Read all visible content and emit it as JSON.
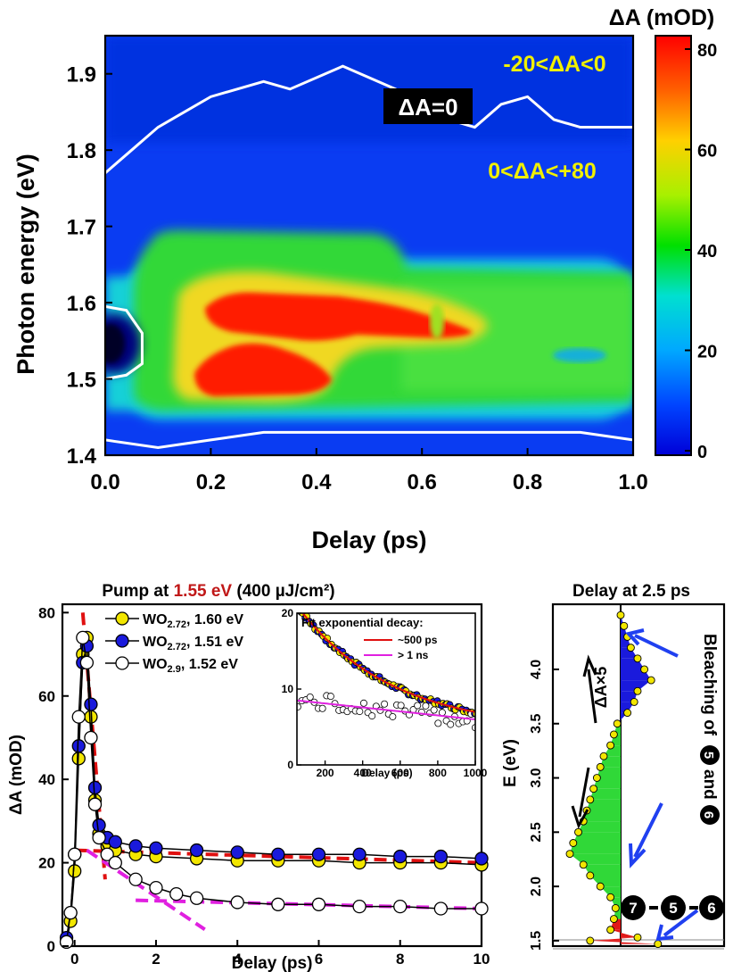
{
  "chart_data": [
    {
      "type": "heatmap",
      "xlabel": "Delay (ps)",
      "ylabel": "Photon energy (eV)",
      "xlim": [
        0,
        1.0
      ],
      "ylim": [
        1.4,
        1.95
      ],
      "x_ticks": [
        "0.0",
        "0.2",
        "0.4",
        "0.6",
        "0.8",
        "1.0"
      ],
      "y_ticks": [
        "1.4",
        "1.5",
        "1.6",
        "1.7",
        "1.8",
        "1.9"
      ],
      "colorbar_title": "ΔA (mOD)",
      "colorbar_ticks": [
        "0",
        "20",
        "40",
        "60",
        "80"
      ],
      "colorbar_range": [
        0,
        80
      ],
      "annotations": [
        "-20<ΔA<0",
        "ΔA=0",
        "0<ΔA<+80"
      ],
      "contour_zero_upper": [
        [
          0.0,
          1.77
        ],
        [
          0.05,
          1.8
        ],
        [
          0.1,
          1.83
        ],
        [
          0.2,
          1.87
        ],
        [
          0.3,
          1.89
        ],
        [
          0.35,
          1.88
        ],
        [
          0.45,
          1.91
        ],
        [
          0.55,
          1.88
        ],
        [
          0.6,
          1.86
        ],
        [
          0.65,
          1.84
        ],
        [
          0.7,
          1.83
        ],
        [
          0.75,
          1.86
        ],
        [
          0.8,
          1.87
        ],
        [
          0.85,
          1.84
        ],
        [
          0.9,
          1.83
        ],
        [
          1.0,
          1.83
        ]
      ],
      "contour_zero_lower": [
        [
          0.0,
          1.42
        ],
        [
          0.1,
          1.41
        ],
        [
          0.2,
          1.42
        ],
        [
          0.3,
          1.43
        ],
        [
          0.4,
          1.43
        ],
        [
          0.5,
          1.43
        ],
        [
          0.7,
          1.43
        ],
        [
          0.8,
          1.43
        ],
        [
          0.9,
          1.43
        ],
        [
          1.0,
          1.42
        ]
      ],
      "contour_zero_left": [
        [
          0.0,
          1.595
        ],
        [
          0.04,
          1.59
        ],
        [
          0.07,
          1.56
        ],
        [
          0.07,
          1.52
        ],
        [
          0.04,
          1.505
        ],
        [
          0.0,
          1.5
        ]
      ]
    },
    {
      "type": "scatter",
      "title_parts": [
        "Pump at ",
        "1.55 eV",
        " (400 µJ/cm²)"
      ],
      "xlabel": "Delay (ps)",
      "ylabel": "ΔA (mOD)",
      "xlim": [
        -0.3,
        10
      ],
      "ylim": [
        0,
        82
      ],
      "x_ticks": [
        "0",
        "2",
        "4",
        "6",
        "8",
        "10"
      ],
      "y_ticks": [
        "0",
        "20",
        "40",
        "60",
        "80"
      ],
      "series": [
        {
          "name": "WO2.72, 1.60 eV",
          "formula": "WO",
          "sub": "2.72",
          "suffix": ", 1.60 eV",
          "color": "#f2e600",
          "x": [
            -0.2,
            -0.1,
            0.0,
            0.1,
            0.2,
            0.3,
            0.4,
            0.5,
            0.6,
            0.8,
            1.0,
            1.5,
            2.0,
            3.0,
            4.0,
            5.0,
            6.0,
            7.0,
            8.0,
            9.0,
            10.0
          ],
          "y": [
            1,
            6,
            18,
            45,
            70,
            74,
            55,
            35,
            27,
            24,
            23,
            22,
            21.5,
            21,
            20.5,
            20.5,
            20.5,
            20,
            20,
            20,
            19.5
          ]
        },
        {
          "name": "WO2.72, 1.51 eV",
          "formula": "WO",
          "sub": "2.72",
          "suffix": ", 1.51 eV",
          "color": "#1a1adc",
          "x": [
            -0.2,
            -0.1,
            0.0,
            0.1,
            0.2,
            0.3,
            0.4,
            0.5,
            0.6,
            0.8,
            1.0,
            1.5,
            2.0,
            3.0,
            4.0,
            5.0,
            6.0,
            7.0,
            8.0,
            9.0,
            10.0
          ],
          "y": [
            2,
            8,
            22,
            48,
            68,
            72,
            58,
            38,
            29,
            26,
            25,
            24,
            23.5,
            23,
            22.5,
            22,
            22,
            22,
            21.5,
            21.5,
            21
          ]
        },
        {
          "name": "WO2.9, 1.52 eV",
          "formula": "WO",
          "sub": "2.9",
          "suffix": ", 1.52 eV",
          "color": "#ffffff",
          "x": [
            -0.2,
            -0.1,
            0.0,
            0.1,
            0.2,
            0.3,
            0.4,
            0.5,
            0.6,
            0.8,
            1.0,
            1.5,
            2.0,
            2.5,
            3.0,
            4.0,
            5.0,
            6.0,
            7.0,
            8.0,
            9.0,
            10.0
          ],
          "y": [
            1,
            8,
            22,
            55,
            74,
            68,
            50,
            34,
            26,
            22,
            20,
            16,
            14,
            12.5,
            11.5,
            10.5,
            10,
            10,
            9.5,
            9.5,
            9,
            9
          ]
        }
      ],
      "fit_lines": [
        {
          "color": "#e01010",
          "points": [
            [
              0.2,
              80
            ],
            [
              0.75,
              16
            ]
          ]
        },
        {
          "color": "#e01010",
          "points": [
            [
              0.0,
              23
            ],
            [
              10,
              20
            ]
          ]
        },
        {
          "color": "#e020e0",
          "points": [
            [
              0.3,
              23
            ],
            [
              3.2,
              4
            ]
          ]
        },
        {
          "color": "#e020e0",
          "points": [
            [
              1.5,
              11
            ],
            [
              10,
              9
            ]
          ]
        }
      ],
      "inset": {
        "title": "Fit exponential decay:",
        "xlabel": "Delay (ps)",
        "xlim": [
          50,
          1000
        ],
        "ylim": [
          0,
          20
        ],
        "x_ticks": [
          "200",
          "400",
          "600",
          "800",
          "1000"
        ],
        "y_ticks": [
          "0",
          "10",
          "20"
        ],
        "legend": [
          {
            "label": "~500 ps",
            "color": "#e01010"
          },
          {
            "label": "> 1 ns",
            "color": "#e020e0"
          }
        ],
        "fit_500ps": {
          "A": 16.5,
          "tau": 500,
          "offset": 4.5
        },
        "fit_1ns": {
          "start": 8.5,
          "end": 6
        }
      }
    },
    {
      "type": "bar",
      "title": "Delay at 2.5 ps",
      "ylabel": "E (eV)",
      "ylim": [
        1.45,
        4.6
      ],
      "y_ticks": [
        "1.5",
        "2.0",
        "2.5",
        "3.0",
        "3.5",
        "4.0"
      ],
      "annotation_scale": "ΔA×5",
      "annotation_bleach": [
        "Bleaching of",
        "5",
        "and",
        "6"
      ],
      "annotation_seq": [
        "7",
        "5",
        "6"
      ],
      "energy": [
        1.47,
        1.5,
        1.53,
        1.6,
        1.7,
        1.8,
        1.9,
        2.0,
        2.1,
        2.2,
        2.3,
        2.4,
        2.5,
        2.6,
        2.7,
        2.8,
        2.9,
        3.0,
        3.1,
        3.2,
        3.3,
        3.4,
        3.5,
        3.6,
        3.7,
        3.8,
        3.9,
        4.0,
        4.1,
        4.2,
        4.3,
        4.4,
        4.5
      ],
      "delta_a": [
        22,
        -18,
        10,
        -6,
        -4,
        -3,
        -6,
        -12,
        -18,
        -22,
        -30,
        -28,
        -25,
        -22,
        -20,
        -18,
        -16,
        -14,
        -12,
        -10,
        -6,
        -4,
        -2,
        4,
        8,
        10,
        18,
        14,
        10,
        6,
        4,
        2,
        0
      ]
    }
  ]
}
